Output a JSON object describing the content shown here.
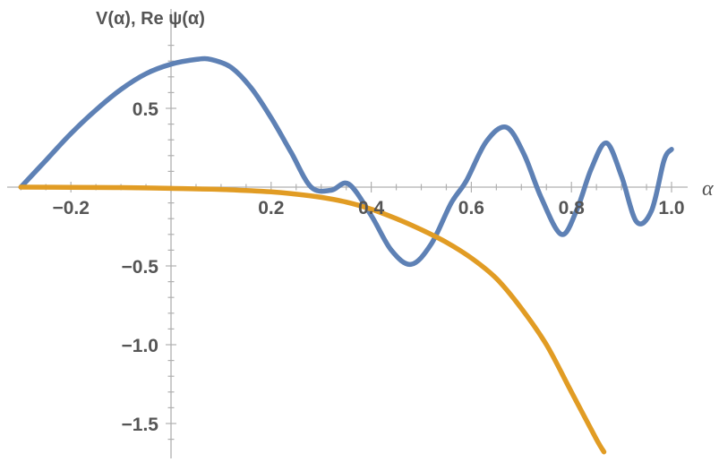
{
  "chart_data": {
    "type": "line",
    "title": "",
    "xlabel": "α",
    "ylabel": "V(α), Re ψ(α)",
    "xlim": [
      -0.31,
      1.04
    ],
    "ylim": [
      -1.68,
      0.97
    ],
    "grid": false,
    "x_ticks": [
      -0.2,
      0.2,
      0.4,
      0.6,
      0.8,
      1.0
    ],
    "x_tick_labels": [
      "−0.2",
      "0.2",
      "0.4",
      "0.6",
      "0.8",
      "1.0"
    ],
    "y_ticks": [
      0.5,
      -0.5,
      -1.0,
      -1.5
    ],
    "y_tick_labels": [
      "0.5",
      "−0.5",
      "−1.0",
      "−1.5"
    ],
    "series": [
      {
        "color": "#5E81B5",
        "x": [
          -0.3,
          -0.25,
          -0.2,
          -0.15,
          -0.1,
          -0.05,
          0.0,
          0.05,
          0.08,
          0.12,
          0.16,
          0.2,
          0.24,
          0.28,
          0.32,
          0.355,
          0.4,
          0.44,
          0.48,
          0.52,
          0.56,
          0.59,
          0.63,
          0.67,
          0.705,
          0.74,
          0.78,
          0.81,
          0.84,
          0.87,
          0.9,
          0.93,
          0.96,
          0.985,
          1.0
        ],
        "y": [
          0.0,
          0.17,
          0.34,
          0.49,
          0.62,
          0.72,
          0.78,
          0.81,
          0.81,
          0.76,
          0.63,
          0.44,
          0.22,
          -0.0,
          -0.02,
          0.02,
          -0.18,
          -0.4,
          -0.49,
          -0.36,
          -0.1,
          0.04,
          0.29,
          0.38,
          0.21,
          -0.07,
          -0.3,
          -0.15,
          0.12,
          0.28,
          0.07,
          -0.22,
          -0.15,
          0.17,
          0.24
        ]
      },
      {
        "color": "#E19C24",
        "x": [
          -0.3,
          -0.2,
          -0.1,
          0.0,
          0.1,
          0.2,
          0.25,
          0.3,
          0.35,
          0.4,
          0.45,
          0.5,
          0.55,
          0.6,
          0.65,
          0.7,
          0.75,
          0.8,
          0.85,
          0.865
        ],
        "y": [
          0.0,
          -0.001,
          -0.003,
          -0.008,
          -0.015,
          -0.03,
          -0.045,
          -0.065,
          -0.095,
          -0.14,
          -0.2,
          -0.27,
          -0.35,
          -0.45,
          -0.58,
          -0.77,
          -1.0,
          -1.3,
          -1.6,
          -1.68
        ]
      }
    ]
  }
}
